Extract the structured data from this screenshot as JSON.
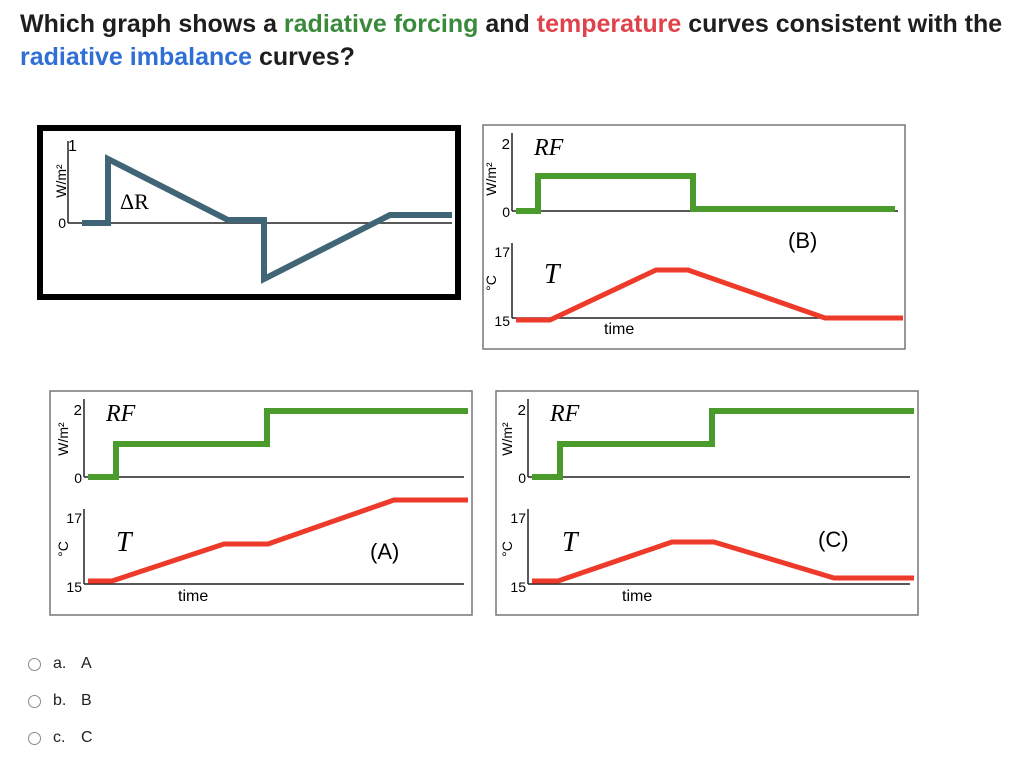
{
  "question": {
    "part1": "Which graph shows a ",
    "hl_forcing": "radiative forcing",
    "part2": " and ",
    "hl_temperature": "temperature",
    "part3": " curves consistent with the ",
    "hl_imbalance": "radiative imbalance",
    "part4": " curves?"
  },
  "colors": {
    "forcing": "#3a8a3c",
    "temperature": "#e0424c",
    "imbalance": "#2f6fd6",
    "rf_line": "#4a9a2c",
    "t_line": "#ee3a2a",
    "dr_line": "#3f6577"
  },
  "figure": {
    "top_left": {
      "unit": "W/m²",
      "tick_top": "1",
      "tick_zero": "0",
      "curve_label": "ΔR"
    },
    "graph_b": {
      "rf_unit": "W/m²",
      "rf_tick_top": "2",
      "rf_tick_zero": "0",
      "rf_label": "RF",
      "t_unit": "°C",
      "t_tick_top": "17",
      "t_tick_bottom": "15",
      "t_label": "T",
      "time_label": "time",
      "panel_label": "(B)"
    },
    "graph_a": {
      "rf_unit": "W/m²",
      "rf_tick_top": "2",
      "rf_tick_zero": "0",
      "rf_label": "RF",
      "t_unit": "°C",
      "t_tick_top": "17",
      "t_tick_bottom": "15",
      "t_label": "T",
      "time_label": "time",
      "panel_label": "(A)"
    },
    "graph_c": {
      "rf_unit": "W/m²",
      "rf_tick_top": "2",
      "rf_tick_zero": "0",
      "rf_label": "RF",
      "t_unit": "°C",
      "t_tick_top": "17",
      "t_tick_bottom": "15",
      "t_label": "T",
      "time_label": "time",
      "panel_label": "(C)"
    }
  },
  "options": [
    {
      "letter": "a.",
      "text": "A"
    },
    {
      "letter": "b.",
      "text": "B"
    },
    {
      "letter": "c.",
      "text": "C"
    }
  ]
}
